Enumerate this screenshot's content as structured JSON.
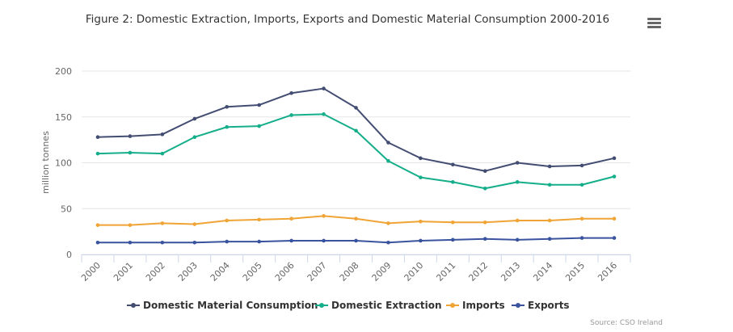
{
  "chart_data": {
    "type": "line",
    "title": "Figure 2: Domestic Extraction, Imports, Exports and Domestic Material Consumption 2000-2016",
    "xlabel": "",
    "ylabel": "million tonnes",
    "categories": [
      "2000",
      "2001",
      "2002",
      "2003",
      "2004",
      "2005",
      "2006",
      "2007",
      "2008",
      "2009",
      "2010",
      "2011",
      "2012",
      "2013",
      "2014",
      "2015",
      "2016"
    ],
    "ylim": [
      0,
      200
    ],
    "yticks": [
      "0",
      "50",
      "100",
      "150",
      "200"
    ],
    "grid": true,
    "legend_position": "bottom",
    "series": [
      {
        "name": "Domestic Material Consumption",
        "color": "#434d72",
        "values": [
          128,
          129,
          131,
          148,
          161,
          163,
          176,
          181,
          160,
          122,
          105,
          98,
          91,
          100,
          96,
          97,
          105
        ]
      },
      {
        "name": "Domestic Extraction",
        "color": "#15ae8a",
        "values": [
          110,
          111,
          110,
          128,
          139,
          140,
          152,
          153,
          135,
          102,
          84,
          79,
          72,
          79,
          76,
          76,
          85
        ]
      },
      {
        "name": "Imports",
        "color": "#f0a435",
        "values": [
          32,
          32,
          34,
          33,
          37,
          38,
          39,
          42,
          39,
          34,
          36,
          35,
          35,
          37,
          37,
          39,
          39
        ]
      },
      {
        "name": "Exports",
        "color": "#39539e",
        "values": [
          13,
          13,
          13,
          13,
          14,
          14,
          15,
          15,
          15,
          13,
          15,
          16,
          17,
          16,
          17,
          18,
          18
        ]
      }
    ],
    "credit": "Source: CSO Ireland"
  },
  "menu": {
    "icon": "hamburger-menu-icon"
  }
}
